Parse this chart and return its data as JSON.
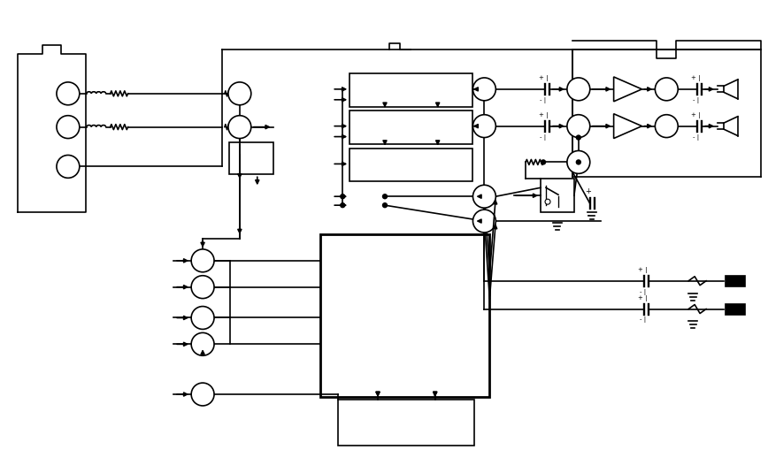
{
  "bg_color": "#ffffff",
  "line_color": "#000000",
  "fig_width": 8.68,
  "fig_height": 5.26
}
